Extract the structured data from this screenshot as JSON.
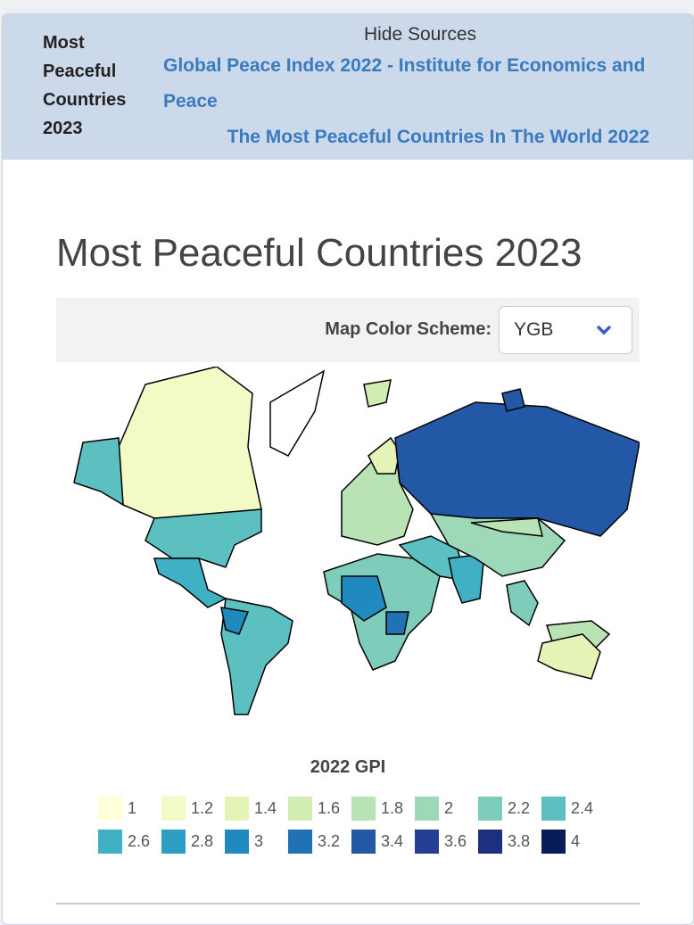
{
  "header": {
    "title": "Most Peaceful Countries 2023",
    "toggle": "Hide Sources",
    "sources": [
      "Global Peace Index 2022 - Institute for Economics and Peace",
      "The Most Peaceful Countries In The World 2022"
    ]
  },
  "page_title": "Most Peaceful Countries 2023",
  "color_scheme": {
    "label": "Map Color Scheme:",
    "value": "YGB"
  },
  "legend": {
    "title": "2022 GPI",
    "items": [
      {
        "value": 1,
        "color": "#ffffd9"
      },
      {
        "value": 1.2,
        "color": "#f3fac5"
      },
      {
        "value": 1.4,
        "color": "#e4f4b6"
      },
      {
        "value": 1.6,
        "color": "#d2edb3"
      },
      {
        "value": 1.8,
        "color": "#b9e3b5"
      },
      {
        "value": 2,
        "color": "#9dd8b8"
      },
      {
        "value": 2.2,
        "color": "#7ecdbb"
      },
      {
        "value": 2.4,
        "color": "#5cbfc0"
      },
      {
        "value": 2.6,
        "color": "#40b0c4"
      },
      {
        "value": 2.8,
        "color": "#2d9fc4"
      },
      {
        "value": 3,
        "color": "#2089bd"
      },
      {
        "value": 3.2,
        "color": "#2171b5"
      },
      {
        "value": 3.4,
        "color": "#2358a6"
      },
      {
        "value": 3.6,
        "color": "#253f97"
      },
      {
        "value": 3.8,
        "color": "#1f2f80"
      },
      {
        "value": 4,
        "color": "#081d58"
      }
    ]
  }
}
